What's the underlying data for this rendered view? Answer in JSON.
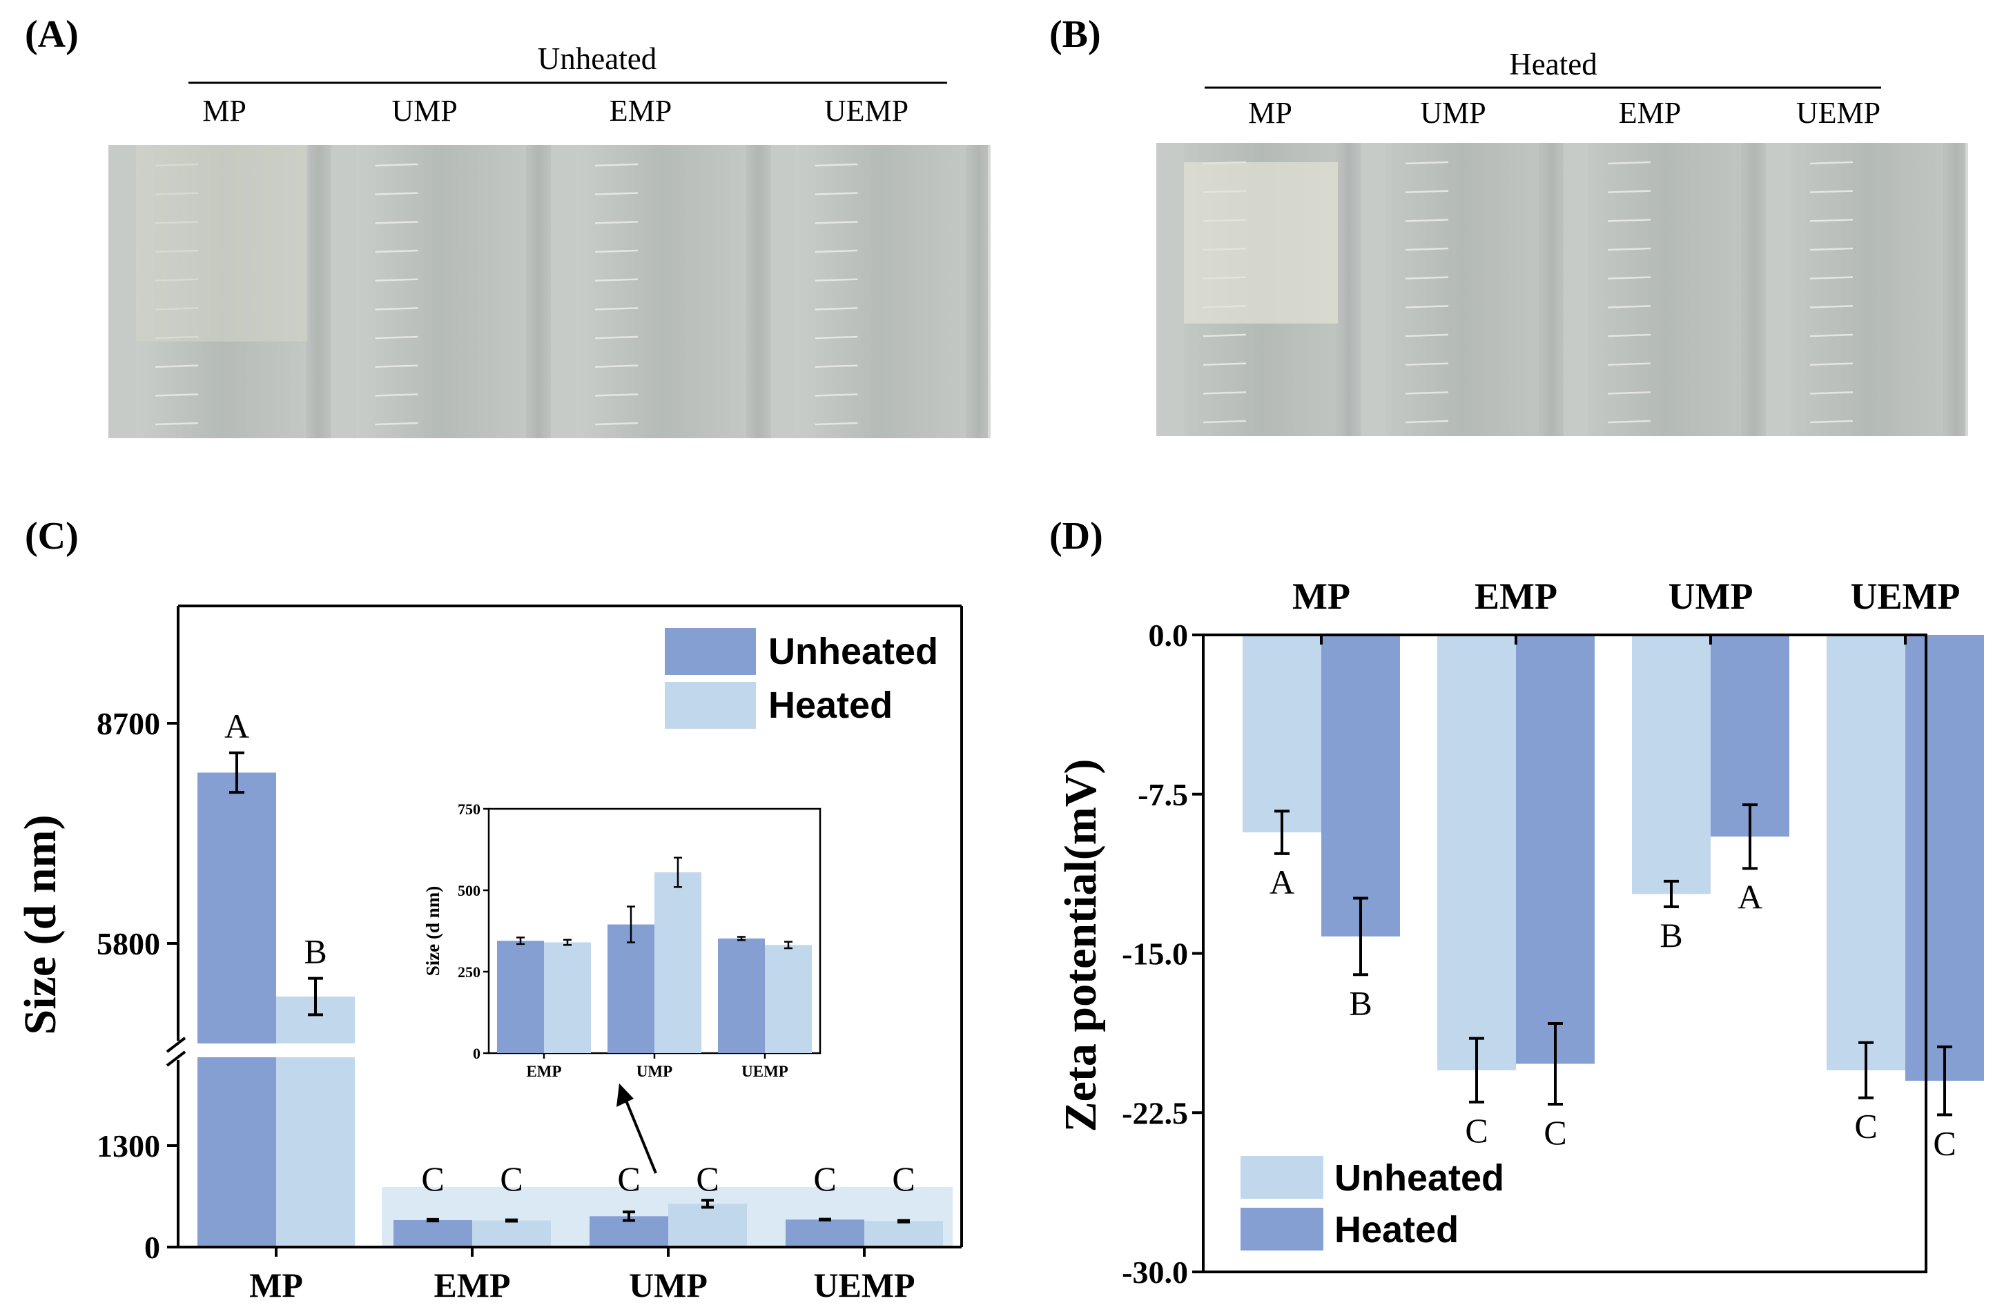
{
  "panels": {
    "a": "(A)",
    "b": "(B)",
    "c": "(C)",
    "d": "(D)"
  },
  "photo_a": {
    "heading": "Unheated",
    "samples": [
      "MP",
      "UMP",
      "EMP",
      "UEMP"
    ]
  },
  "photo_b": {
    "heading": "Heated",
    "samples": [
      "MP",
      "UMP",
      "EMP",
      "UEMP"
    ]
  },
  "colors": {
    "unheated": "#859fd3",
    "heated": "#c1d7ec",
    "inset_band": "#dbe9f4"
  },
  "chart_data": [
    {
      "id": "C",
      "type": "bar",
      "ylabel": "Size (d nm)",
      "categories": [
        "MP",
        "EMP",
        "UMP",
        "UEMP"
      ],
      "broken_axis": true,
      "yticks_lower": [
        0,
        1300
      ],
      "yticks_upper": [
        5800,
        8700
      ],
      "lower_range": [
        0,
        1300
      ],
      "upper_range": [
        4500,
        10000
      ],
      "legend": [
        "Unheated",
        "Heated"
      ],
      "legend_position": "top-right",
      "series": [
        {
          "name": "Unheated",
          "color": "#859fd3",
          "values": [
            8050,
            345,
            395,
            352
          ],
          "errors": [
            260,
            10,
            55,
            5
          ],
          "letters": [
            "A",
            "C",
            "C",
            "C"
          ]
        },
        {
          "name": "Heated",
          "color": "#c1d7ec",
          "values": [
            5100,
            340,
            555,
            332
          ],
          "errors": [
            240,
            8,
            45,
            10
          ],
          "letters": [
            "B",
            "C",
            "C",
            "C"
          ]
        }
      ],
      "inset": {
        "ylabel": "Size (d nm)",
        "categories": [
          "EMP",
          "UMP",
          "UEMP"
        ],
        "ylim": [
          0,
          750
        ],
        "yticks": [
          0,
          250,
          500,
          750
        ],
        "unheated": [
          345,
          395,
          352
        ],
        "unheated_err": [
          10,
          55,
          5
        ],
        "heated": [
          340,
          555,
          332
        ],
        "heated_err": [
          8,
          45,
          10
        ]
      }
    },
    {
      "id": "D",
      "type": "bar",
      "ylabel": "Zeta potential(mV)",
      "categories": [
        "MP",
        "EMP",
        "UMP",
        "UEMP"
      ],
      "category_axis": "top",
      "ylim": [
        -30,
        0
      ],
      "yticks": [
        "0.0",
        "-7.5",
        "-15.0",
        "-22.5",
        "-30.0"
      ],
      "ytick_values": [
        0,
        -7.5,
        -15,
        -22.5,
        -30
      ],
      "legend": [
        "Unheated",
        "Heated"
      ],
      "legend_position": "bottom-left",
      "series": [
        {
          "name": "Unheated",
          "color": "#c1d7ec",
          "values": [
            -9.3,
            -20.5,
            -12.2,
            -20.5
          ],
          "errors": [
            1.0,
            1.5,
            0.6,
            1.3
          ],
          "letters": [
            "A",
            "C",
            "B",
            "C"
          ]
        },
        {
          "name": "Heated",
          "color": "#859fd3",
          "values": [
            -14.2,
            -20.2,
            -9.5,
            -21.0
          ],
          "errors": [
            1.8,
            1.9,
            1.5,
            1.6
          ],
          "letters": [
            "B",
            "C",
            "A",
            "C"
          ]
        }
      ]
    }
  ]
}
